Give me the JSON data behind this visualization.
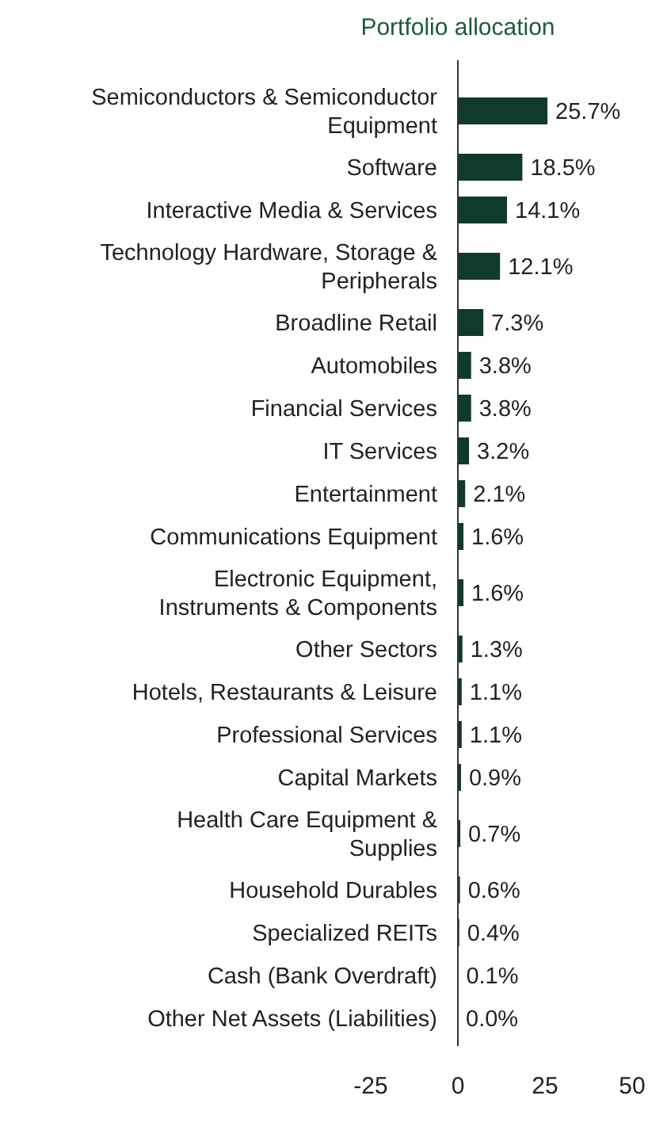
{
  "chart_data": {
    "type": "bar",
    "orientation": "horizontal",
    "title": "Portfolio allocation",
    "categories": [
      "Semiconductors & Semiconductor Equipment",
      "Software",
      "Interactive Media & Services",
      "Technology Hardware, Storage & Peripherals",
      "Broadline Retail",
      "Automobiles",
      "Financial Services",
      "IT Services",
      "Entertainment",
      "Communications Equipment",
      "Electronic Equipment, Instruments & Components",
      "Other Sectors",
      "Hotels, Restaurants & Leisure",
      "Professional Services",
      "Capital Markets",
      "Health Care Equipment & Supplies",
      "Household Durables",
      "Specialized REITs",
      "Cash (Bank Overdraft)",
      "Other Net Assets (Liabilities)"
    ],
    "values": [
      25.7,
      18.5,
      14.1,
      12.1,
      7.3,
      3.8,
      3.8,
      3.2,
      2.1,
      1.6,
      1.6,
      1.3,
      1.1,
      1.1,
      0.9,
      0.7,
      0.6,
      0.4,
      0.1,
      0.0
    ],
    "value_labels": [
      "25.7%",
      "18.5%",
      "14.1%",
      "12.1%",
      "7.3%",
      "3.8%",
      "3.8%",
      "3.2%",
      "2.1%",
      "1.6%",
      "1.6%",
      "1.3%",
      "1.1%",
      "1.1%",
      "0.9%",
      "0.7%",
      "0.6%",
      "0.4%",
      "0.1%",
      "0.0%"
    ],
    "color": "#0e3b2a",
    "xlim": [
      -25,
      50
    ],
    "xticks": [
      -25,
      0,
      25,
      50
    ],
    "grid": false
  }
}
